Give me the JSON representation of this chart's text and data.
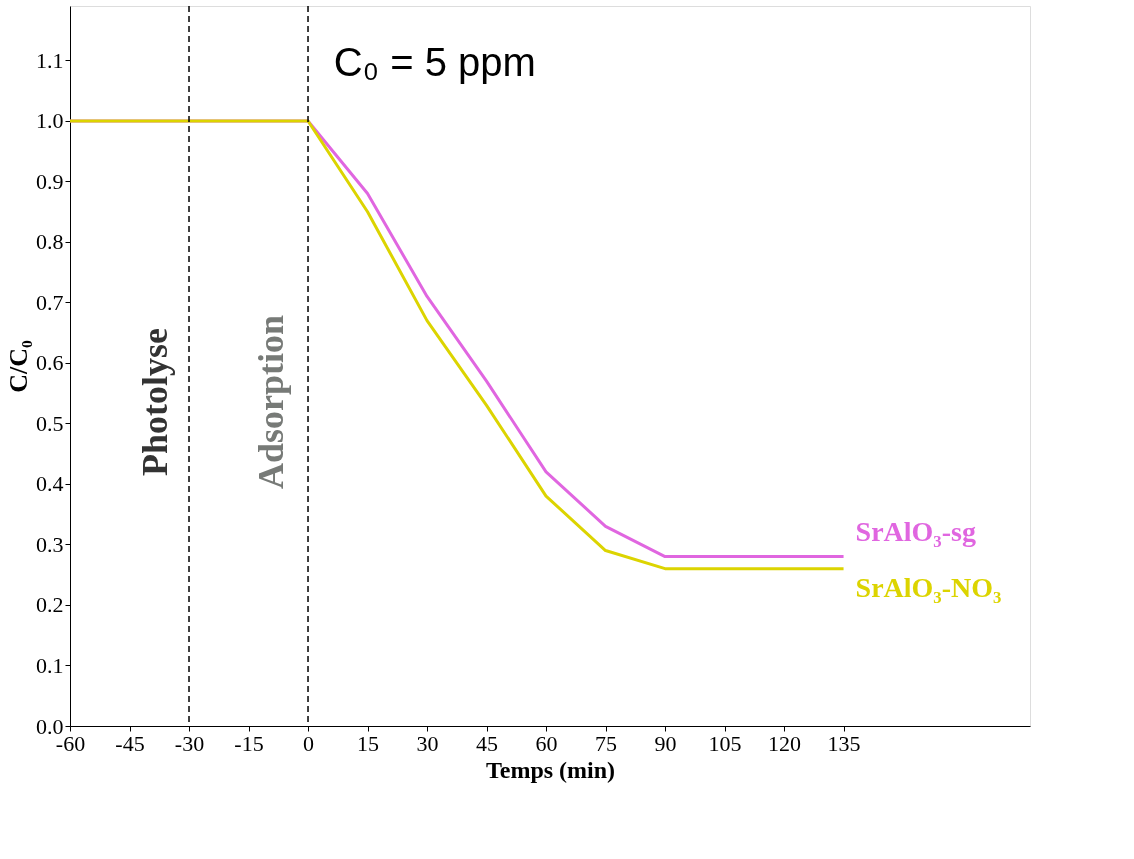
{
  "chart_data": {
    "type": "line",
    "xlabel": "Temps (min)",
    "ylabel": "C/C₀",
    "series": [
      {
        "name": "SrAlO₃-sg",
        "color": "#e066e0",
        "x": [
          -60,
          0,
          15,
          30,
          45,
          60,
          75,
          90,
          135
        ],
        "values": [
          1.0,
          1.0,
          0.88,
          0.71,
          0.57,
          0.42,
          0.33,
          0.28,
          0.28
        ]
      },
      {
        "name": "SrAlO₃-NO₃",
        "color": "#dcd400",
        "x": [
          -60,
          0,
          15,
          30,
          45,
          60,
          75,
          90,
          135
        ],
        "values": [
          1.0,
          1.0,
          0.85,
          0.67,
          0.53,
          0.38,
          0.29,
          0.26,
          0.26
        ]
      }
    ],
    "xlim": [
      -60,
      182
    ],
    "xticks": [
      -60,
      -45,
      -30,
      -15,
      0,
      15,
      30,
      45,
      60,
      75,
      90,
      105,
      120,
      135
    ],
    "ylim": [
      0,
      1.19
    ],
    "yticks": [
      {
        "value": 0,
        "label": "0.0"
      },
      0.1,
      0.2,
      0.3,
      0.4,
      0.5,
      0.6,
      0.7,
      0.8,
      0.9,
      {
        "value": 1,
        "label": "1.0"
      },
      1.1
    ],
    "ref_lines": [
      {
        "axis": "x",
        "value": -30,
        "color": "#000000",
        "line_style": "dashed"
      },
      {
        "axis": "x",
        "value": 0,
        "color": "#000000",
        "line_style": "dashed"
      }
    ],
    "annotations": [
      "Photolyse",
      "Adsorption",
      "C₀ = 5 ppm"
    ],
    "grid": false,
    "legend": false,
    "marker": "none",
    "line_style": "solid"
  }
}
